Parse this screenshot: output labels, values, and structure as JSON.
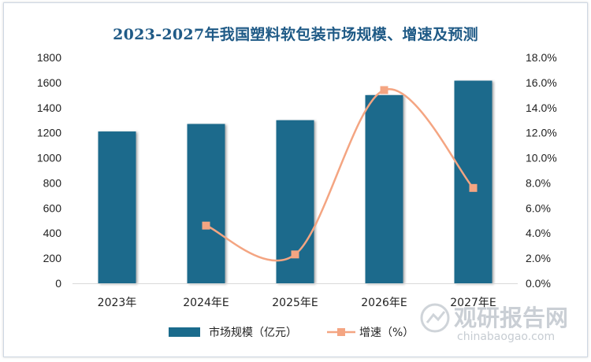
{
  "chart_data": {
    "type": "bar",
    "title": "2023-2027年我国塑料软包装市场规模、增速及预测",
    "categories": [
      "2023年",
      "2024年E",
      "2025年E",
      "2026年E",
      "2027年E"
    ],
    "series": [
      {
        "name": "市场规模（亿元）",
        "type": "bar",
        "axis": "left",
        "color": "#1a6b8c",
        "values": [
          1210,
          1270,
          1300,
          1500,
          1615
        ]
      },
      {
        "name": "增速（%）",
        "type": "line",
        "axis": "right",
        "color": "#f4a582",
        "values": [
          null,
          4.6,
          2.3,
          15.4,
          7.6
        ]
      }
    ],
    "y_left": {
      "min": 0,
      "max": 1800,
      "ticks": [
        "0",
        "200",
        "400",
        "600",
        "800",
        "1000",
        "1200",
        "1400",
        "1600",
        "1800"
      ]
    },
    "y_right": {
      "min": 0,
      "max": 18,
      "ticks": [
        "0.0%",
        "2.0%",
        "4.0%",
        "6.0%",
        "8.0%",
        "10.0%",
        "12.0%",
        "14.0%",
        "16.0%",
        "18.0%"
      ]
    },
    "grid": false,
    "legend_position": "bottom"
  },
  "watermark": {
    "name": "观研报告网",
    "url": "chinabaogao.com"
  }
}
